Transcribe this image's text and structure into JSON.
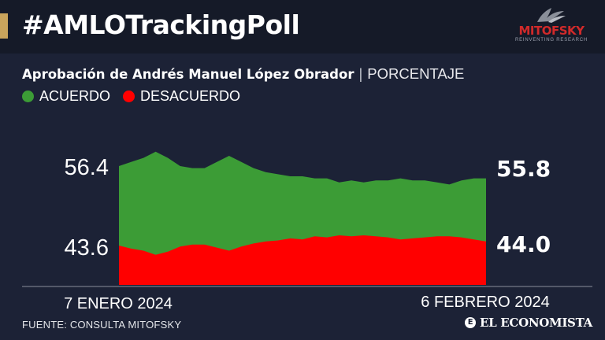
{
  "header": {
    "title": "#AMLOTrackingPoll",
    "logo_text": "MITOFSKY",
    "logo_tagline": "REINVENTING RESEARCH"
  },
  "subtitle": {
    "main": "Aprobación de Andrés Manuel López Obrador",
    "separator": "|",
    "unit": "PORCENTAJE"
  },
  "footer": {
    "source": "FUENTE: CONSULTA MITOFSKY",
    "brand": "EL ECONOMISTA",
    "brand_mark": "E"
  },
  "colors": {
    "background": "#1c2236",
    "header": "#151a28",
    "accent": "#c9a45c",
    "acuerdo": "#3c9c36",
    "desacuerdo": "#ff0000"
  },
  "chart_data": {
    "type": "area",
    "title": "Aprobación de Andrés Manuel López Obrador",
    "ylabel": "PORCENTAJE",
    "x_start_label": "7 ENERO 2024",
    "x_end_label": "6 FEBRERO 2024",
    "ylim": [
      40,
      58
    ],
    "start_labels": [
      "56.4",
      "43.6"
    ],
    "end_labels": [
      "55.8",
      "44.0"
    ],
    "series": [
      {
        "name": "ACUERDO",
        "color": "#3c9c36",
        "values": [
          56.4,
          56.6,
          56.8,
          57.1,
          56.8,
          56.4,
          56.3,
          56.3,
          56.6,
          56.9,
          56.6,
          56.3,
          56.1,
          56.0,
          55.9,
          55.9,
          55.8,
          55.8,
          55.6,
          55.7,
          55.6,
          55.7,
          55.7,
          55.8,
          55.7,
          55.7,
          55.6,
          55.5,
          55.7,
          55.8,
          55.8
        ]
      },
      {
        "name": "DESACUERDO",
        "color": "#ff0000",
        "values": [
          43.6,
          43.3,
          43.1,
          42.7,
          43.0,
          43.5,
          43.7,
          43.7,
          43.4,
          43.1,
          43.5,
          43.8,
          44.0,
          44.1,
          44.3,
          44.2,
          44.5,
          44.4,
          44.6,
          44.5,
          44.6,
          44.5,
          44.4,
          44.2,
          44.3,
          44.4,
          44.5,
          44.5,
          44.4,
          44.2,
          44.0
        ]
      }
    ]
  }
}
